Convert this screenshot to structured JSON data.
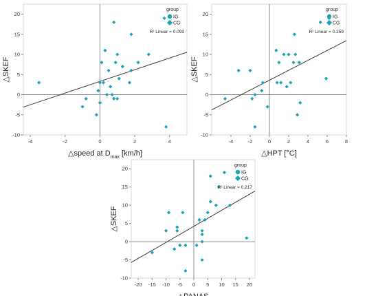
{
  "colors": {
    "marker": "#1aa3b5",
    "axis": "#8a8a8a",
    "grid": "#d9d9d9",
    "fit": "#3a3a3a",
    "text": "#222222",
    "tick": "#333333"
  },
  "chart_data": [
    {
      "type": "scatter",
      "xlabel_pre": "△speed at D",
      "xlabel_sub": "max",
      "xlabel_post": " [km/h]",
      "ylabel": "△SKEF",
      "xlim": [
        -4.4,
        5
      ],
      "ylim": [
        -10,
        22.5
      ],
      "xticks": [
        -4,
        -2,
        0,
        2,
        4
      ],
      "xtick_labels": [
        "-4",
        "-2",
        "0",
        "2",
        "4"
      ],
      "yticks": [
        -10,
        -5,
        0,
        5,
        10,
        15,
        20
      ],
      "ytick_labels": [
        "-10",
        "-5",
        "0",
        "5",
        "10",
        "15",
        "20"
      ],
      "legend": {
        "title": "group",
        "items": [
          "IG",
          "CG"
        ],
        "placement": "top-right"
      },
      "r2_label": "R² Linear = 0.093",
      "fit": {
        "slope": 1.45,
        "intercept": 3.3
      },
      "series": [
        {
          "name": "IG",
          "marker": "circle",
          "points": []
        },
        {
          "name": "CG",
          "marker": "diamond",
          "points": [
            [
              -3.5,
              3
            ],
            [
              -1.0,
              -3
            ],
            [
              -0.8,
              -1
            ],
            [
              -0.2,
              -5
            ],
            [
              -0.1,
              1
            ],
            [
              0.0,
              -2
            ],
            [
              0.0,
              3
            ],
            [
              0.1,
              8
            ],
            [
              0.2,
              3
            ],
            [
              0.3,
              11
            ],
            [
              0.4,
              0
            ],
            [
              0.5,
              6
            ],
            [
              0.6,
              2
            ],
            [
              0.7,
              0
            ],
            [
              0.8,
              18
            ],
            [
              0.8,
              -1
            ],
            [
              0.9,
              8
            ],
            [
              1.0,
              10
            ],
            [
              1.0,
              -1
            ],
            [
              1.1,
              4
            ],
            [
              1.3,
              7
            ],
            [
              1.7,
              3
            ],
            [
              1.8,
              6
            ],
            [
              1.8,
              15
            ],
            [
              2.2,
              8
            ],
            [
              2.8,
              10
            ],
            [
              3.7,
              19
            ],
            [
              3.8,
              -8
            ]
          ]
        }
      ]
    },
    {
      "type": "scatter",
      "xlabel_pre": "△HPT [°C]",
      "xlabel_sub": "",
      "xlabel_post": "",
      "ylabel": "△SKEF",
      "xlim": [
        -6,
        8
      ],
      "ylim": [
        -10,
        22.5
      ],
      "xticks": [
        -4,
        -2,
        0,
        2,
        4,
        6,
        8
      ],
      "xtick_labels": [
        "-4",
        "-2",
        "0",
        "2",
        "4",
        "6",
        "8"
      ],
      "yticks": [
        -10,
        -5,
        0,
        5,
        10,
        15,
        20
      ],
      "ytick_labels": [
        "-10",
        "-5",
        "0",
        "5",
        "10",
        "15",
        "20"
      ],
      "legend": {
        "title": "group",
        "items": [
          "IG",
          "CG"
        ],
        "placement": "top-right"
      },
      "r2_label": "R² Linear = 0.259",
      "fit": {
        "slope": 1.23,
        "intercept": 3.6
      },
      "series": [
        {
          "name": "IG",
          "marker": "circle",
          "points": []
        },
        {
          "name": "CG",
          "marker": "diamond",
          "points": [
            [
              -4.6,
              -1
            ],
            [
              -3.2,
              6
            ],
            [
              -2.0,
              6
            ],
            [
              -1.8,
              -1
            ],
            [
              -1.5,
              0
            ],
            [
              -1.5,
              -8
            ],
            [
              -0.8,
              1
            ],
            [
              -0.7,
              3
            ],
            [
              -0.2,
              -3
            ],
            [
              0.7,
              11
            ],
            [
              0.8,
              3
            ],
            [
              1.0,
              8
            ],
            [
              1.2,
              3
            ],
            [
              1.5,
              10
            ],
            [
              1.8,
              2
            ],
            [
              2.0,
              10
            ],
            [
              2.2,
              3
            ],
            [
              2.5,
              8
            ],
            [
              2.6,
              15
            ],
            [
              2.7,
              10
            ],
            [
              2.9,
              -5
            ],
            [
              3.1,
              8
            ],
            [
              3.2,
              -2
            ],
            [
              5.3,
              18
            ],
            [
              5.9,
              4
            ],
            [
              6.2,
              19
            ]
          ]
        }
      ]
    },
    {
      "type": "scatter",
      "xlabel_pre": "△PANAS",
      "xlabel_sub": "",
      "xlabel_post": "",
      "ylabel": "△SKEF",
      "xlim": [
        -22.5,
        22
      ],
      "ylim": [
        -10,
        22.5
      ],
      "xticks": [
        -20,
        -15,
        -10,
        -5,
        0,
        5,
        10,
        15,
        20
      ],
      "xtick_labels": [
        "-20",
        "-15",
        "-10",
        "-5",
        "0",
        "5",
        "10",
        "15",
        "20"
      ],
      "yticks": [
        -10,
        -5,
        0,
        5,
        10,
        15,
        20
      ],
      "ytick_labels": [
        "-10",
        "-5",
        "0",
        "5",
        "10",
        "15",
        "20"
      ],
      "legend": {
        "title": "group",
        "items": [
          "IG",
          "CG"
        ],
        "placement": "top-right"
      },
      "r2_label": "R² Linear = 0.217",
      "fit": {
        "slope": 0.44,
        "intercept": 4.2
      },
      "series": [
        {
          "name": "IG",
          "marker": "circle",
          "points": []
        },
        {
          "name": "CG",
          "marker": "diamond",
          "points": [
            [
              -15,
              -3
            ],
            [
              -10,
              3
            ],
            [
              -9,
              8
            ],
            [
              -7,
              -2
            ],
            [
              -6,
              4
            ],
            [
              -6,
              3
            ],
            [
              -5,
              -1
            ],
            [
              -4,
              8
            ],
            [
              -3,
              -1
            ],
            [
              -3,
              -8
            ],
            [
              1,
              -1
            ],
            [
              2,
              6
            ],
            [
              3,
              -5
            ],
            [
              3,
              0
            ],
            [
              3,
              2
            ],
            [
              3,
              3
            ],
            [
              4,
              6
            ],
            [
              5,
              8
            ],
            [
              6,
              11
            ],
            [
              6,
              18
            ],
            [
              8,
              10
            ],
            [
              9,
              15
            ],
            [
              11,
              19
            ],
            [
              13,
              10
            ],
            [
              19,
              1
            ]
          ]
        }
      ]
    }
  ]
}
